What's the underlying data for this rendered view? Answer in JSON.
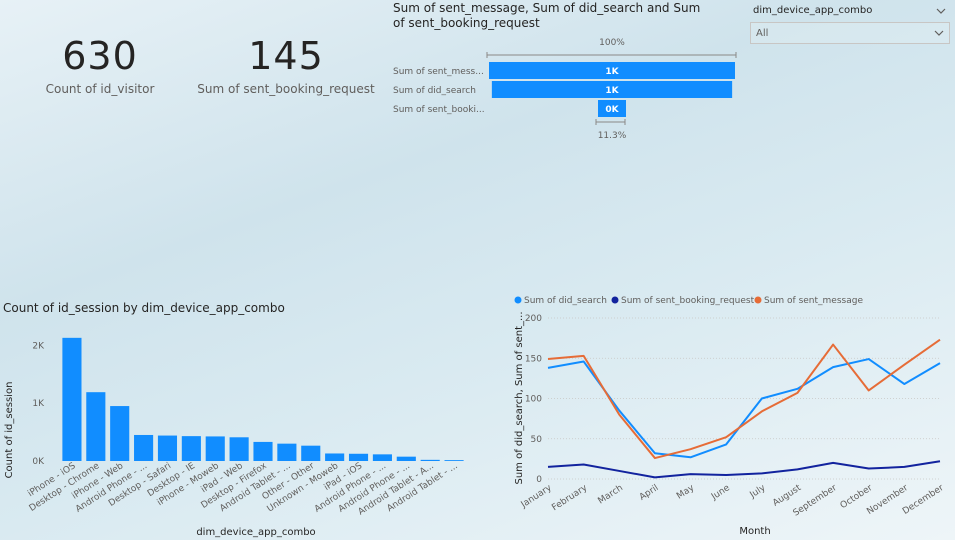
{
  "kpis": [
    {
      "value": "630",
      "label": "Count of id_visitor"
    },
    {
      "value": "145",
      "label": "Sum of sent_booking_request"
    }
  ],
  "slicer": {
    "title": "dim_device_app_combo",
    "value": "All"
  },
  "colors": {
    "blue": "#118DFF",
    "navy": "#12239E",
    "orange": "#E66C37",
    "axis": "#605e5c"
  },
  "chart_data": [
    {
      "type": "funnel",
      "title": "Sum of sent_message, Sum of did_search and Sum of sent_booking_request",
      "categories": [
        "Sum of sent_mess...",
        "Sum of did_search",
        "Sum of sent_booki..."
      ],
      "values": [
        1290,
        1260,
        145
      ],
      "data_labels": [
        "1K",
        "1K",
        "0K"
      ],
      "top_percent": "100%",
      "bottom_percent": "11.3%"
    },
    {
      "type": "bar",
      "title": "Count of id_session by dim_device_app_combo",
      "xlabel": "dim_device_app_combo",
      "ylabel": "Count of id_session",
      "categories": [
        "iPhone - iOS",
        "Desktop - Chrome",
        "iPhone - Web",
        "Android Phone - ...",
        "Desktop - Safari",
        "Desktop - IE",
        "iPhone - Moweb",
        "iPad - Web",
        "Desktop - Firefox",
        "Android Tablet - ...",
        "Other - Other",
        "Unknown - Moweb",
        "iPad - iOS",
        "Android Phone - ...",
        "Android Phone - ...",
        "Android Tablet - A...",
        "Android Tablet - ..."
      ],
      "values": [
        2130,
        1190,
        950,
        450,
        440,
        430,
        425,
        410,
        330,
        300,
        265,
        130,
        125,
        115,
        75,
        20,
        15
      ],
      "yticks": [
        "0K",
        "1K",
        "2K"
      ],
      "ylim": [
        0,
        2300
      ]
    },
    {
      "type": "line",
      "xlabel": "Month",
      "ylabel": "Sum of did_search, Sum of sent_...",
      "categories": [
        "January",
        "February",
        "March",
        "April",
        "May",
        "June",
        "July",
        "August",
        "September",
        "October",
        "November",
        "December"
      ],
      "series": [
        {
          "name": "Sum of did_search",
          "values": [
            138,
            146,
            85,
            32,
            27,
            43,
            100,
            112,
            139,
            149,
            118,
            144
          ]
        },
        {
          "name": "Sum of sent_booking_request",
          "values": [
            15,
            18,
            10,
            2,
            6,
            5,
            7,
            12,
            20,
            13,
            15,
            22
          ]
        },
        {
          "name": "Sum of sent_message",
          "values": [
            149,
            153,
            80,
            26,
            37,
            52,
            84,
            107,
            167,
            110,
            142,
            173
          ]
        }
      ],
      "yticks": [
        "0",
        "50",
        "100",
        "150",
        "200"
      ],
      "ylim": [
        0,
        200
      ]
    }
  ]
}
